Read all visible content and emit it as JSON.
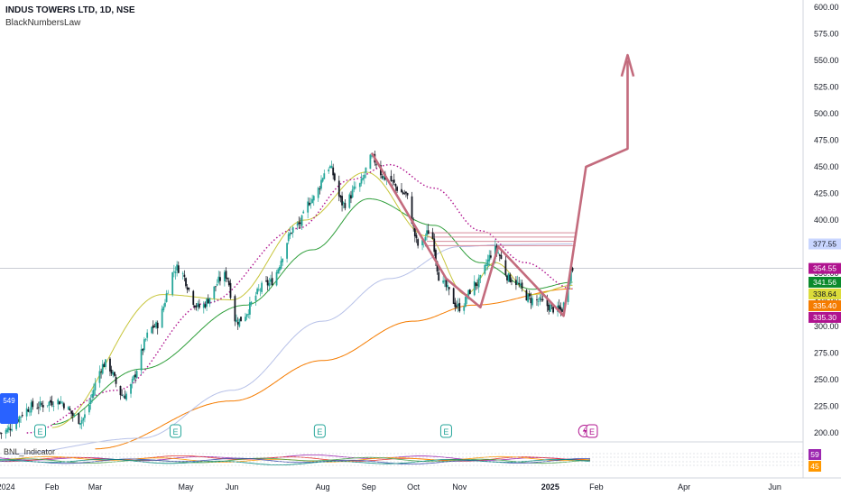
{
  "header": {
    "ticker_line": "INDUS TOWERS LTD, 1D, NSE",
    "author": "BlackNumbersLaw"
  },
  "indicator": {
    "label": "BNL_Indicator",
    "values": [
      "59",
      "45"
    ],
    "colors": [
      "#9c27b0",
      "#ff9800"
    ]
  },
  "earnings_marker": "E",
  "colors": {
    "up": "#26a69a",
    "down": "#131722",
    "ma_green": "#2e9e3a",
    "ma_orange": "#f57c00",
    "ma_yellow": "#c7c53a",
    "ma_lavender": "#b7c1e8",
    "dotted_magenta": "#b0138f",
    "pattern": "#c36b7d",
    "level_lines": "#d68a9a"
  },
  "chart_data": {
    "type": "candlestick",
    "x_range": [
      "2023-12-28",
      "2025-06-20"
    ],
    "ylim": [
      182,
      608
    ],
    "ylabel_ticks": [
      "200.00",
      "225.00",
      "250.00",
      "275.00",
      "300.00",
      "325.00",
      "350.00",
      "375.00",
      "400.00",
      "425.00",
      "450.00",
      "475.00",
      "500.00",
      "525.00",
      "550.00",
      "575.00",
      "600.00"
    ],
    "y_ticks": [
      200,
      225,
      250,
      275,
      300,
      325,
      350,
      375,
      400,
      425,
      450,
      475,
      500,
      525,
      550,
      575,
      600
    ],
    "x_ticks": [
      {
        "date": "2024-01-01",
        "label": "2024"
      },
      {
        "date": "2024-02-01",
        "label": "Feb"
      },
      {
        "date": "2024-03-01",
        "label": "Mar"
      },
      {
        "date": "2024-05-01",
        "label": "May"
      },
      {
        "date": "2024-06-01",
        "label": "Jun"
      },
      {
        "date": "2024-08-01",
        "label": "Aug"
      },
      {
        "date": "2024-09-01",
        "label": "Sep"
      },
      {
        "date": "2024-10-01",
        "label": "Oct"
      },
      {
        "date": "2024-11-01",
        "label": "Nov"
      },
      {
        "date": "2025-01-01",
        "label": "2025"
      },
      {
        "date": "2025-02-01",
        "label": "Feb"
      },
      {
        "date": "2025-04-01",
        "label": "Apr"
      },
      {
        "date": "2025-06-01",
        "label": "Jun"
      }
    ],
    "price_anchors": [
      [
        "2023-12-28",
        200
      ],
      [
        "2024-01-20",
        225
      ],
      [
        "2024-02-05",
        230
      ],
      [
        "2024-02-20",
        212
      ],
      [
        "2024-03-08",
        265
      ],
      [
        "2024-03-20",
        235
      ],
      [
        "2024-04-10",
        300
      ],
      [
        "2024-04-25",
        355
      ],
      [
        "2024-05-10",
        318
      ],
      [
        "2024-05-28",
        348
      ],
      [
        "2024-06-04",
        305
      ],
      [
        "2024-06-25",
        340
      ],
      [
        "2024-07-15",
        395
      ],
      [
        "2024-07-25",
        420
      ],
      [
        "2024-08-05",
        450
      ],
      [
        "2024-08-15",
        415
      ],
      [
        "2024-08-25",
        432
      ],
      [
        "2024-09-03",
        458
      ],
      [
        "2024-09-12",
        440
      ],
      [
        "2024-09-25",
        425
      ],
      [
        "2024-10-05",
        375
      ],
      [
        "2024-10-12",
        390
      ],
      [
        "2024-10-20",
        340
      ],
      [
        "2024-11-01",
        318
      ],
      [
        "2024-11-12",
        340
      ],
      [
        "2024-11-25",
        372
      ],
      [
        "2024-12-05",
        345
      ],
      [
        "2024-12-20",
        325
      ],
      [
        "2025-01-08",
        315
      ],
      [
        "2025-01-16",
        354
      ]
    ],
    "last_close": 354.55,
    "series": [
      {
        "name": "ma-green",
        "color": "#2e9e3a",
        "points": [
          [
            "2024-02-01",
            208
          ],
          [
            "2024-04-01",
            260
          ],
          [
            "2024-06-10",
            320
          ],
          [
            "2024-07-25",
            372
          ],
          [
            "2024-09-01",
            420
          ],
          [
            "2024-10-15",
            395
          ],
          [
            "2024-11-15",
            360
          ],
          [
            "2024-12-20",
            335
          ],
          [
            "2025-01-16",
            341.56
          ]
        ]
      },
      {
        "name": "ma-orange",
        "color": "#f57c00",
        "points": [
          [
            "2024-03-01",
            185
          ],
          [
            "2024-06-01",
            230
          ],
          [
            "2024-08-01",
            268
          ],
          [
            "2024-10-01",
            305
          ],
          [
            "2024-11-10",
            320
          ],
          [
            "2025-01-16",
            335.4
          ]
        ]
      },
      {
        "name": "ma-lavender",
        "color": "#b7c1e8",
        "points": [
          [
            "2024-01-01",
            180
          ],
          [
            "2024-04-01",
            195
          ],
          [
            "2024-06-01",
            240
          ],
          [
            "2024-08-01",
            305
          ],
          [
            "2024-09-15",
            345
          ],
          [
            "2024-11-01",
            375
          ],
          [
            "2024-12-01",
            377
          ],
          [
            "2025-01-16",
            377.55
          ]
        ]
      },
      {
        "name": "ma-yellow",
        "color": "#c7c53a",
        "points": [
          [
            "2024-02-01",
            205
          ],
          [
            "2024-04-15",
            330
          ],
          [
            "2024-06-01",
            325
          ],
          [
            "2024-07-20",
            400
          ],
          [
            "2024-08-30",
            445
          ],
          [
            "2024-10-10",
            385
          ],
          [
            "2024-11-05",
            330
          ],
          [
            "2024-11-25",
            360
          ],
          [
            "2024-12-20",
            330
          ],
          [
            "2025-01-16",
            338.64
          ]
        ]
      },
      {
        "name": "ma-dotted",
        "color": "#b0138f",
        "points": [
          [
            "2024-01-15",
            200
          ],
          [
            "2024-03-15",
            240
          ],
          [
            "2024-05-15",
            322
          ],
          [
            "2024-07-15",
            392
          ],
          [
            "2024-08-20",
            438
          ],
          [
            "2024-09-15",
            452
          ],
          [
            "2024-10-15",
            430
          ],
          [
            "2024-11-15",
            390
          ],
          [
            "2024-12-15",
            360
          ],
          [
            "2025-01-16",
            335.3
          ]
        ]
      }
    ],
    "pattern_path": [
      [
        "2024-09-03",
        463
      ],
      [
        "2024-10-23",
        345
      ],
      [
        "2024-11-15",
        318
      ],
      [
        "2024-11-27",
        375
      ],
      [
        "2025-01-10",
        310
      ],
      [
        "2025-01-25",
        450
      ],
      [
        "2025-02-22",
        467
      ],
      [
        "2025-02-22",
        550
      ]
    ],
    "arrow_head": [
      [
        "2025-02-18",
        535
      ],
      [
        "2025-02-22",
        555
      ],
      [
        "2025-02-26",
        535
      ]
    ],
    "level_lines": [
      {
        "from": "2024-10-10",
        "to": "2025-01-18",
        "y": 388
      },
      {
        "from": "2024-10-10",
        "to": "2025-01-18",
        "y": 384
      },
      {
        "from": "2024-10-10",
        "to": "2025-01-18",
        "y": 380
      },
      {
        "from": "2024-10-10",
        "to": "2025-01-18",
        "y": 376
      }
    ],
    "earnings_dates": [
      "2024-01-24",
      "2024-04-24",
      "2024-07-30",
      "2024-10-23"
    ],
    "upcoming_events": [
      "2025-01-24",
      "2025-01-29"
    ],
    "price_labels": [
      {
        "value": "377.55",
        "y": 377.55,
        "bg": "#c9d6ff",
        "fg": "#131722"
      },
      {
        "value": "354.55",
        "y": 354.55,
        "bg": "#b0138f",
        "fg": "#ffffff"
      },
      {
        "value": "341.56",
        "y": 341.56,
        "bg": "#0a8a2c",
        "fg": "#ffffff"
      },
      {
        "value": "338.64",
        "y": 338.64,
        "bg": "#dcdc3a",
        "fg": "#131722"
      },
      {
        "value": "335.40",
        "y": 335.4,
        "bg": "#f57c00",
        "fg": "#ffffff"
      },
      {
        "value": "335.30",
        "y": 335.3,
        "bg": "#b0138f",
        "fg": "#ffffff"
      }
    ],
    "edge_label": "549"
  }
}
